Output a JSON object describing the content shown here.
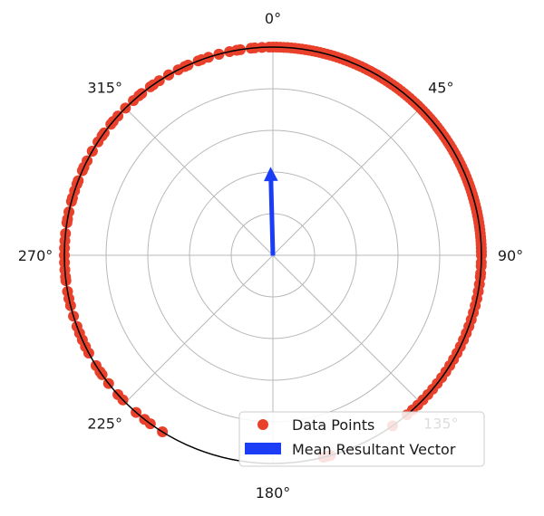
{
  "chart_data": {
    "type": "scatter",
    "projection": "polar",
    "theta_zero": "top",
    "theta_direction": "clockwise",
    "r_max": 1,
    "angle_ticks": [
      "0°",
      "45°",
      "90°",
      "135°",
      "180°",
      "225°",
      "270°",
      "315°"
    ],
    "angle_tick_values": [
      0,
      45,
      90,
      135,
      180,
      225,
      270,
      315
    ],
    "radial_gridlines": [
      0.2,
      0.4,
      0.6,
      0.8
    ],
    "grid": true,
    "legend": {
      "placement": "lower-right",
      "entries": [
        "Data Points",
        "Mean Resultant Vector"
      ]
    },
    "colors": {
      "points": "#e8402a",
      "vector": "#1a3df5",
      "grid": "#b8b8b8",
      "frame": "#000000"
    },
    "series": [
      {
        "name": "Data Points",
        "kind": "points",
        "r": 1,
        "theta_deg": [
          0,
          2,
          4,
          6,
          8,
          10,
          12,
          14,
          16,
          18,
          20,
          22,
          24,
          26,
          28,
          30,
          32,
          34,
          36,
          38,
          40,
          42,
          44,
          46,
          48,
          50,
          52,
          54,
          56,
          58,
          60,
          62,
          64,
          66,
          68,
          70,
          72,
          74,
          76,
          78,
          80,
          82,
          84,
          86,
          88,
          90,
          93,
          96,
          100,
          104,
          108,
          112,
          118,
          124,
          128,
          132,
          136,
          140,
          165,
          212,
          218,
          228,
          232,
          235,
          238,
          242,
          246,
          250,
          253,
          256,
          260,
          263,
          266,
          268,
          272,
          276,
          279,
          282,
          285,
          288,
          291,
          294,
          297,
          300,
          303,
          306,
          309,
          312,
          315,
          318,
          321,
          324,
          327,
          330,
          333,
          336,
          339,
          342,
          345,
          348,
          351,
          354,
          357,
          359,
          1,
          3,
          5,
          7,
          9,
          11,
          13,
          15,
          17,
          19,
          21,
          23,
          25,
          27,
          29,
          31,
          33,
          35,
          37,
          39,
          41,
          43,
          45,
          47,
          49,
          51,
          53,
          55,
          57,
          59,
          61,
          63,
          65,
          67,
          69,
          71,
          73,
          75,
          77,
          79,
          81,
          83,
          85,
          87,
          89,
          280,
          290,
          300,
          310,
          320,
          330,
          340,
          350,
          355,
          325,
          335,
          345,
          305,
          295,
          286,
          274,
          270,
          264,
          258,
          248,
          244,
          236,
          226,
          221,
          216,
          164,
          166,
          145,
          138,
          134,
          130,
          126,
          122,
          120,
          116,
          114,
          110,
          106,
          102,
          98,
          95,
          92
        ]
      },
      {
        "name": "Mean Resultant Vector",
        "kind": "arrow",
        "theta_deg": 358.5,
        "r": 0.42
      }
    ]
  }
}
